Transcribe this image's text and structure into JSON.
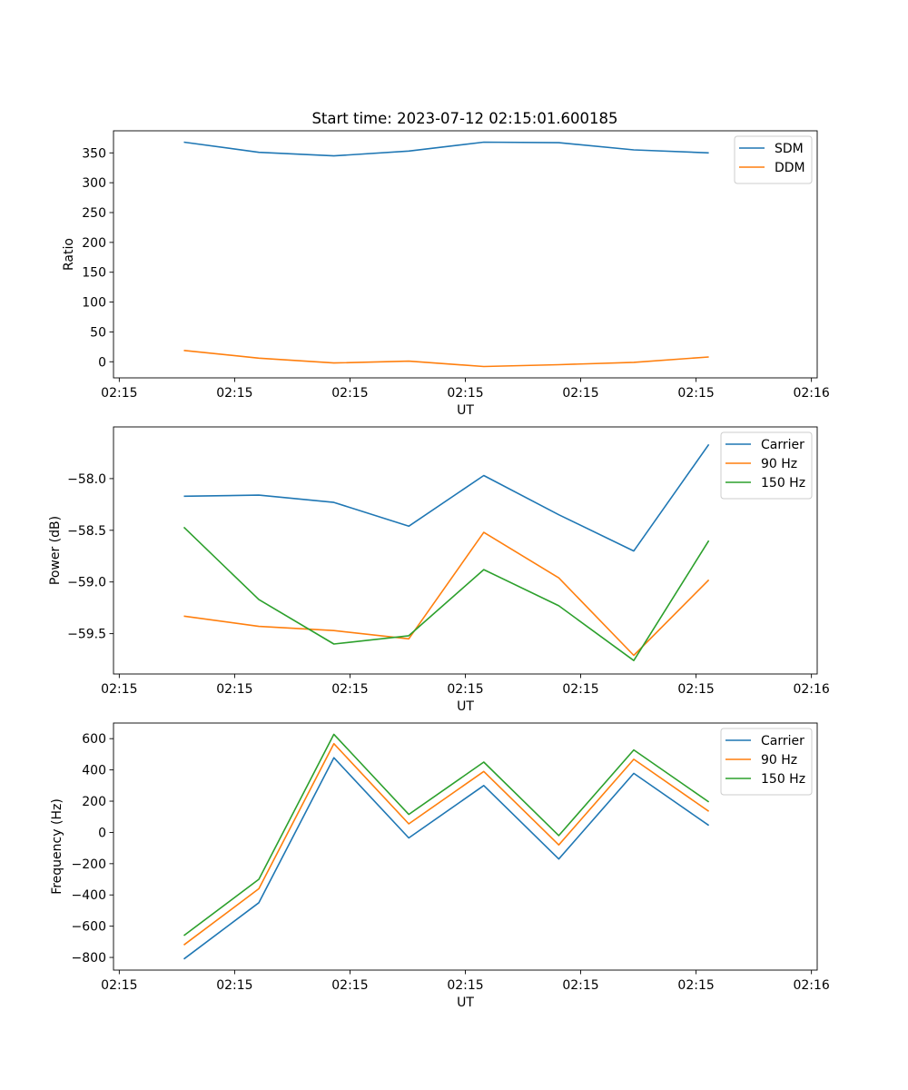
{
  "figure_title": "Start time: 2023-07-12 02:15:01.600185",
  "chart_data": [
    {
      "type": "line",
      "title": "Start time: 2023-07-12 02:15:01.600185",
      "xlabel": "UT",
      "ylabel": "Ratio",
      "x": [
        0.56,
        1.21,
        1.86,
        2.51,
        3.16,
        3.81,
        4.46,
        5.11
      ],
      "xlim": [
        -0.05,
        6.05
      ],
      "x_ticks": [
        0,
        1,
        2,
        3,
        4,
        5,
        6
      ],
      "x_tick_labels": [
        "02:15",
        "02:15",
        "02:15",
        "02:15",
        "02:15",
        "02:15",
        "02:16"
      ],
      "ylim": [
        -27,
        387
      ],
      "y_ticks": [
        0,
        50,
        100,
        150,
        200,
        250,
        300,
        350
      ],
      "y_tick_labels": [
        "0",
        "50",
        "100",
        "150",
        "200",
        "250",
        "300",
        "350"
      ],
      "legend_position": "top-right",
      "series": [
        {
          "name": "SDM",
          "color": "#1f77b4",
          "values": [
            368,
            351,
            345,
            353,
            368,
            367,
            355,
            350
          ]
        },
        {
          "name": "DDM",
          "color": "#ff7f0e",
          "values": [
            19,
            6,
            -2,
            1,
            -8,
            -5,
            -1,
            8
          ]
        }
      ]
    },
    {
      "type": "line",
      "title": "",
      "xlabel": "UT",
      "ylabel": "Power (dB)",
      "x": [
        0.56,
        1.21,
        1.86,
        2.51,
        3.16,
        3.81,
        4.46,
        5.11
      ],
      "xlim": [
        -0.05,
        6.05
      ],
      "x_ticks": [
        0,
        1,
        2,
        3,
        4,
        5,
        6
      ],
      "x_tick_labels": [
        "02:15",
        "02:15",
        "02:15",
        "02:15",
        "02:15",
        "02:15",
        "02:16"
      ],
      "ylim": [
        -59.89,
        -57.5
      ],
      "y_ticks": [
        -59.5,
        -59.0,
        -58.5,
        -58.0
      ],
      "y_tick_labels": [
        "−59.5",
        "−59.0",
        "−58.5",
        "−58.0"
      ],
      "legend_position": "top-right",
      "series": [
        {
          "name": "Carrier",
          "color": "#1f77b4",
          "values": [
            -58.17,
            -58.16,
            -58.23,
            -58.46,
            -57.97,
            -58.35,
            -58.7,
            -57.67
          ]
        },
        {
          "name": "90 Hz",
          "color": "#ff7f0e",
          "values": [
            -59.33,
            -59.43,
            -59.47,
            -59.55,
            -58.52,
            -58.96,
            -59.71,
            -58.98
          ]
        },
        {
          "name": "150 Hz",
          "color": "#2ca02c",
          "values": [
            -58.47,
            -59.17,
            -59.6,
            -59.52,
            -58.88,
            -59.23,
            -59.76,
            -58.6
          ]
        }
      ]
    },
    {
      "type": "line",
      "title": "",
      "xlabel": "UT",
      "ylabel": "Frequency (Hz)",
      "x": [
        0.56,
        1.21,
        1.86,
        2.51,
        3.16,
        3.81,
        4.46,
        5.11
      ],
      "xlim": [
        -0.05,
        6.05
      ],
      "x_ticks": [
        0,
        1,
        2,
        3,
        4,
        5,
        6
      ],
      "x_tick_labels": [
        "02:15",
        "02:15",
        "02:15",
        "02:15",
        "02:15",
        "02:15",
        "02:16"
      ],
      "ylim": [
        -881,
        700
      ],
      "y_ticks": [
        -800,
        -600,
        -400,
        -200,
        0,
        200,
        400,
        600
      ],
      "y_tick_labels": [
        "−800",
        "−600",
        "−400",
        "−200",
        "0",
        "200",
        "400",
        "600"
      ],
      "legend_position": "top-right",
      "series": [
        {
          "name": "Carrier",
          "color": "#1f77b4",
          "values": [
            -810,
            -450,
            478,
            -35,
            300,
            -170,
            378,
            45
          ]
        },
        {
          "name": "90 Hz",
          "color": "#ff7f0e",
          "values": [
            -720,
            -360,
            568,
            55,
            390,
            -80,
            468,
            135
          ]
        },
        {
          "name": "150 Hz",
          "color": "#2ca02c",
          "values": [
            -660,
            -300,
            628,
            115,
            450,
            -20,
            528,
            195
          ]
        }
      ]
    }
  ]
}
